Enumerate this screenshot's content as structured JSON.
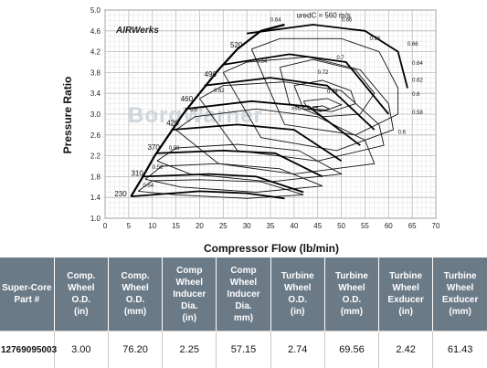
{
  "chart_data": {
    "type": "compressor-map",
    "xlabel": "Compressor Flow (lb/min)",
    "ylabel": "Pressure Ratio",
    "xlim": [
      0,
      70
    ],
    "ylim": [
      1.0,
      5.0
    ],
    "x_ticks": [
      0,
      5,
      10,
      15,
      20,
      25,
      30,
      35,
      40,
      45,
      50,
      55,
      60,
      65,
      70
    ],
    "y_ticks": [
      "1.0",
      "1.4",
      "1.8",
      "2.2",
      "2.6",
      "3.0",
      "3.4",
      "3.8",
      "4.2",
      "4.6",
      "5.0"
    ],
    "grid": true,
    "brand": "AIRWerks",
    "watermark": "BorgWarner",
    "surge_line": [
      [
        5.5,
        1.42
      ],
      [
        8.0,
        1.8
      ],
      [
        10.5,
        2.2
      ],
      [
        13.5,
        2.6
      ],
      [
        16.5,
        3.0
      ],
      [
        20.0,
        3.4
      ],
      [
        24.0,
        3.85
      ],
      [
        28.0,
        4.25
      ],
      [
        33.0,
        4.6
      ],
      [
        38.0,
        4.72
      ]
    ],
    "speed_lines": [
      {
        "label": "230",
        "points": [
          [
            5.5,
            1.42
          ],
          [
            20,
            1.52
          ],
          [
            30,
            1.48
          ],
          [
            38,
            1.38
          ]
        ]
      },
      {
        "label": "310",
        "points": [
          [
            8,
            1.8
          ],
          [
            22,
            1.85
          ],
          [
            32,
            1.8
          ],
          [
            42,
            1.5
          ]
        ]
      },
      {
        "label": "370",
        "points": [
          [
            11,
            2.25
          ],
          [
            25,
            2.3
          ],
          [
            36,
            2.25
          ],
          [
            46,
            1.8
          ]
        ]
      },
      {
        "label": "420",
        "points": [
          [
            14,
            2.7
          ],
          [
            28,
            2.8
          ],
          [
            40,
            2.7
          ],
          [
            50,
            2.1
          ]
        ]
      },
      {
        "label": "460",
        "points": [
          [
            17,
            3.1
          ],
          [
            31,
            3.25
          ],
          [
            43,
            3.15
          ],
          [
            54,
            2.4
          ]
        ]
      },
      {
        "label": "490",
        "points": [
          [
            21,
            3.55
          ],
          [
            35,
            3.7
          ],
          [
            47,
            3.55
          ],
          [
            57,
            2.7
          ]
        ]
      },
      {
        "label": "520",
        "points": [
          [
            25,
            3.95
          ],
          [
            39,
            4.15
          ],
          [
            51,
            4.0
          ],
          [
            60,
            3.0
          ]
        ]
      },
      {
        "label": "uredC = 560 m/s",
        "points": [
          [
            30,
            4.55
          ],
          [
            44,
            4.72
          ],
          [
            55,
            4.6
          ],
          [
            62,
            4.2
          ],
          [
            64,
            3.5
          ]
        ]
      }
    ],
    "efficiency_islands": [
      {
        "label": "0.54",
        "points": [
          [
            7,
            1.52
          ],
          [
            10,
            1.72
          ],
          [
            20,
            1.74
          ],
          [
            33,
            1.7
          ],
          [
            42,
            1.45
          ],
          [
            30,
            1.38
          ],
          [
            15,
            1.45
          ],
          [
            7,
            1.52
          ]
        ]
      },
      {
        "label": "0.56",
        "points": [
          [
            8.5,
            1.75
          ],
          [
            12,
            2.0
          ],
          [
            24,
            2.05
          ],
          [
            37,
            1.95
          ],
          [
            46,
            1.62
          ],
          [
            32,
            1.5
          ],
          [
            16,
            1.6
          ],
          [
            8.5,
            1.75
          ]
        ]
      },
      {
        "label": "0.58",
        "points": [
          [
            11,
            2.1
          ],
          [
            15,
            2.35
          ],
          [
            28,
            2.42
          ],
          [
            41,
            2.3
          ],
          [
            50,
            1.85
          ],
          [
            35,
            1.7
          ],
          [
            18,
            1.85
          ],
          [
            11,
            2.1
          ]
        ]
      },
      {
        "label": "0.6",
        "points": [
          [
            15,
            2.7
          ],
          [
            19,
            2.95
          ],
          [
            32,
            3.1
          ],
          [
            45,
            2.95
          ],
          [
            55,
            2.5
          ],
          [
            57,
            2.05
          ],
          [
            40,
            1.85
          ],
          [
            24,
            2.05
          ],
          [
            15,
            2.7
          ]
        ]
      },
      {
        "label": "0.62",
        "points": [
          [
            20,
            3.3
          ],
          [
            25,
            3.55
          ],
          [
            38,
            3.62
          ],
          [
            50,
            3.45
          ],
          [
            58,
            2.8
          ],
          [
            59,
            2.4
          ],
          [
            45,
            2.1
          ],
          [
            28,
            2.3
          ],
          [
            20,
            3.3
          ]
        ]
      },
      {
        "label": "0.64",
        "points": [
          [
            25,
            3.8
          ],
          [
            30,
            4.0
          ],
          [
            43,
            4.1
          ],
          [
            54,
            3.85
          ],
          [
            60,
            3.2
          ],
          [
            61,
            2.7
          ],
          [
            49,
            2.3
          ],
          [
            33,
            2.55
          ],
          [
            25,
            3.8
          ]
        ]
      },
      {
        "label": "0.66",
        "points": [
          [
            31,
            4.25
          ],
          [
            37,
            4.45
          ],
          [
            50,
            4.45
          ],
          [
            58,
            4.2
          ],
          [
            62,
            3.5
          ],
          [
            62,
            3.0
          ],
          [
            53,
            2.6
          ],
          [
            38,
            2.8
          ],
          [
            31,
            4.25
          ]
        ]
      },
      {
        "label": "0.7",
        "points": [
          [
            37,
            3.9
          ],
          [
            44,
            4.05
          ],
          [
            53,
            3.85
          ],
          [
            57,
            3.4
          ],
          [
            54,
            3.0
          ],
          [
            46,
            2.95
          ],
          [
            39,
            3.2
          ],
          [
            37,
            3.9
          ]
        ]
      },
      {
        "label": "0.72",
        "points": [
          [
            40,
            3.55
          ],
          [
            46,
            3.65
          ],
          [
            52,
            3.45
          ],
          [
            53,
            3.2
          ],
          [
            48,
            3.05
          ],
          [
            42,
            3.1
          ],
          [
            40,
            3.55
          ]
        ]
      },
      {
        "label": "0.74",
        "points": [
          [
            42,
            3.25
          ],
          [
            47,
            3.3
          ],
          [
            50,
            3.18
          ],
          [
            47,
            3.08
          ],
          [
            43,
            3.1
          ],
          [
            42,
            3.25
          ]
        ]
      },
      {
        "label": "nsC = 0.75",
        "points": [
          [
            43.5,
            3.12
          ],
          [
            46,
            3.16
          ],
          [
            47.5,
            3.1
          ],
          [
            45.5,
            3.05
          ],
          [
            43.5,
            3.12
          ]
        ]
      }
    ],
    "efficiency_label_positions": [
      {
        "label": "0.54",
        "x": 8,
        "y": 1.6
      },
      {
        "label": "0.56",
        "x": 10,
        "y": 1.95
      },
      {
        "label": "0.58",
        "x": 13.5,
        "y": 2.32
      },
      {
        "label": "0.6",
        "x": 18,
        "y": 3.05
      },
      {
        "label": "0.62",
        "x": 23,
        "y": 3.42
      },
      {
        "label": "0.64",
        "x": 32,
        "y": 3.98
      },
      {
        "label": "0.64",
        "x": 35,
        "y": 4.78
      },
      {
        "label": "0.66",
        "x": 50,
        "y": 4.78
      },
      {
        "label": "0.66",
        "x": 56,
        "y": 4.42
      },
      {
        "label": "0.66",
        "x": 64,
        "y": 4.32
      },
      {
        "label": "0.7",
        "x": 49,
        "y": 4.05
      },
      {
        "label": "0.72",
        "x": 45,
        "y": 3.77
      },
      {
        "label": "0.74",
        "x": 47,
        "y": 3.4
      },
      {
        "label": "nsC = 0.75",
        "x": 39.5,
        "y": 3.08
      },
      {
        "label": "0.64",
        "x": 65,
        "y": 3.95
      },
      {
        "label": "0.62",
        "x": 65,
        "y": 3.62
      },
      {
        "label": "0.6",
        "x": 65,
        "y": 3.35
      },
      {
        "label": "0.58",
        "x": 65,
        "y": 3.0
      },
      {
        "label": "0.6",
        "x": 62,
        "y": 2.62
      }
    ],
    "speed_label_positions": [
      {
        "label": "230",
        "x": 2,
        "y": 1.42
      },
      {
        "label": "310",
        "x": 5.5,
        "y": 1.82
      },
      {
        "label": "370",
        "x": 9,
        "y": 2.32
      },
      {
        "label": "420",
        "x": 13,
        "y": 2.78
      },
      {
        "label": "460",
        "x": 16,
        "y": 3.25
      },
      {
        "label": "490",
        "x": 21,
        "y": 3.72
      },
      {
        "label": "520",
        "x": 26.5,
        "y": 4.28
      },
      {
        "label": "uredC = 560 m/s",
        "x": 40.5,
        "y": 4.85
      }
    ]
  },
  "table": {
    "headers": [
      [
        "Super-Core",
        "Part #"
      ],
      [
        "Comp.",
        "Wheel",
        "O.D.",
        "(in)"
      ],
      [
        "Comp.",
        "Wheel",
        "O.D.",
        "(mm)"
      ],
      [
        "Comp",
        "Wheel",
        "Inducer",
        "Dia.",
        "(in)"
      ],
      [
        "Comp",
        "Wheel",
        "Inducer",
        "Dia.",
        "mm)"
      ],
      [
        "Turbine",
        "Wheel",
        "O.D.",
        "(in)"
      ],
      [
        "Turbine",
        "Wheel",
        "O.D.",
        "(mm)"
      ],
      [
        "Turbine",
        "Wheel",
        "Exducer",
        "(in)"
      ],
      [
        "Turbine",
        "Wheel",
        "Exducer",
        "(mm)"
      ]
    ],
    "row": [
      "12769095003",
      "3.00",
      "76.20",
      "2.25",
      "57.15",
      "2.74",
      "69.56",
      "2.42",
      "61.43"
    ]
  }
}
